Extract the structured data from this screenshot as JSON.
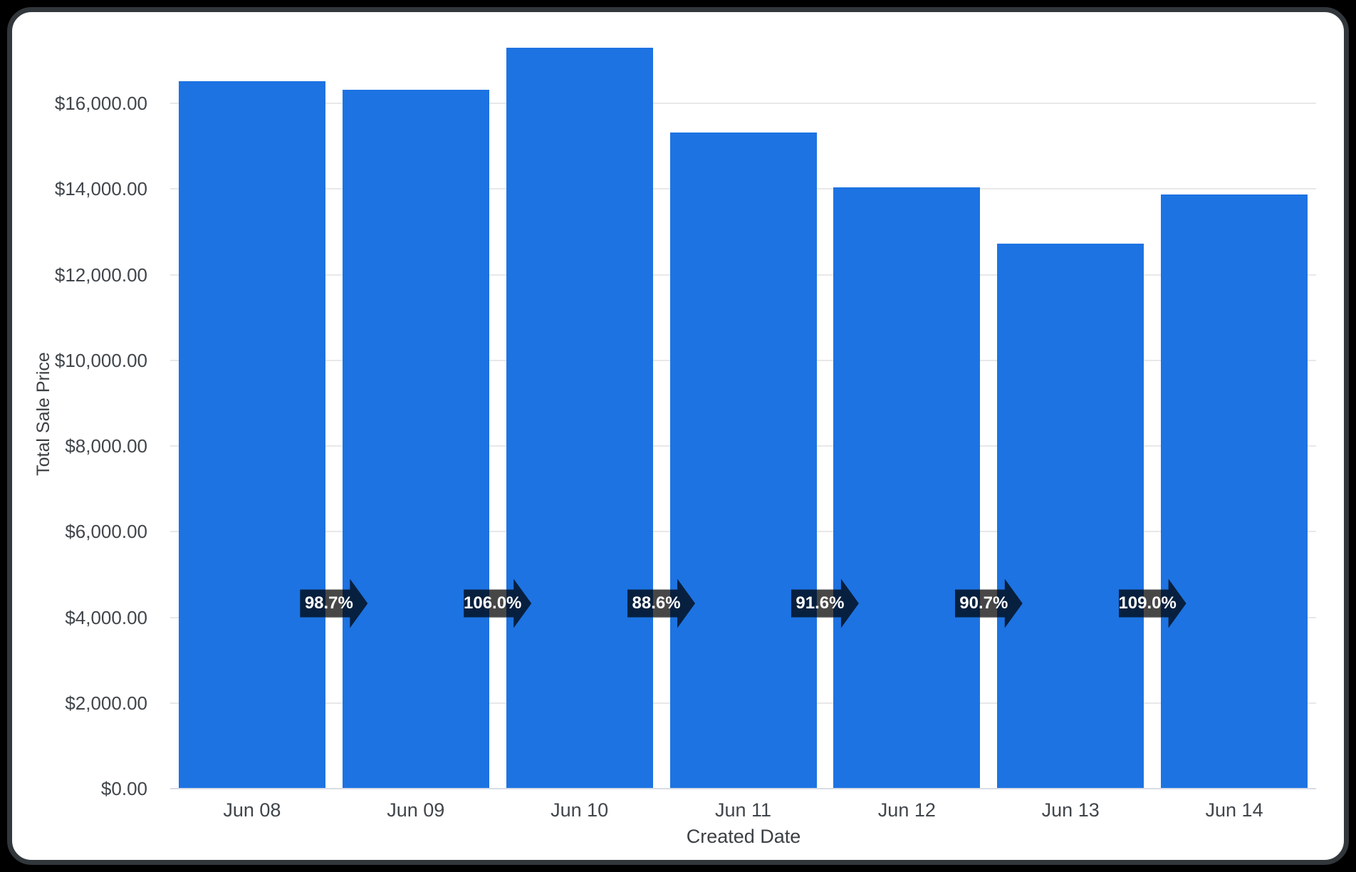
{
  "chart_data": {
    "type": "bar",
    "title": "",
    "xlabel": "Created Date",
    "ylabel": "Total Sale Price",
    "categories": [
      "Jun 08",
      "Jun 09",
      "Jun 10",
      "Jun 11",
      "Jun 12",
      "Jun 13",
      "Jun 14"
    ],
    "series": [
      {
        "name": "Total Sale Price",
        "values": [
          16520,
          16310,
          17290,
          15320,
          14030,
          12720,
          13870
        ]
      }
    ],
    "y_axis": {
      "tick_values": [
        0,
        2000,
        4000,
        6000,
        8000,
        10000,
        12000,
        14000,
        16000
      ],
      "tick_labels": [
        "$0.00",
        "$2,000.00",
        "$4,000.00",
        "$6,000.00",
        "$8,000.00",
        "$10,000.00",
        "$12,000.00",
        "$14,000.00",
        "$16,000.00"
      ],
      "range": [
        0,
        18130
      ]
    },
    "grid": "horizontal",
    "legend_position": "none",
    "percent_change_badges": [
      "98.7%",
      "106.0%",
      "88.6%",
      "91.6%",
      "90.7%",
      "109.0%"
    ]
  },
  "colors": {
    "bar": "#1d73e2",
    "badge_bg": "rgba(0,0,0,0.72)",
    "badge_text": "#ffffff",
    "gridline": "#e8e8e8",
    "axis_line": "#d8dce4",
    "tick_label": "#41464b",
    "axis_title": "#3c4043",
    "card_bg": "#ffffff",
    "card_border": "#32373b",
    "page_bg": "#000000"
  }
}
